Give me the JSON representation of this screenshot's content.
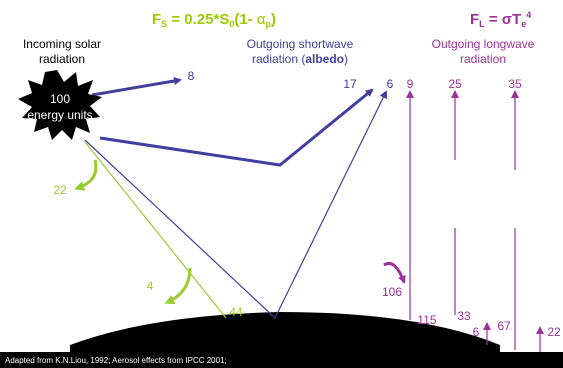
{
  "shortwave_formula": {
    "f": "F",
    "f_sub": "S",
    "mid": " = 0.25*S",
    "s_sub": "0",
    "open": "(1- ",
    "alpha": "α",
    "alpha_sub": "p",
    "close": ")"
  },
  "longwave_formula": {
    "f": "F",
    "f_sub": "L",
    "mid": " = σT",
    "e_sub": "e",
    "sup": "4"
  },
  "incoming_label": [
    "Incoming solar",
    "radiation"
  ],
  "shortwave_label": {
    "line1": "Outgoing shortwave",
    "line2_start": "radiation (",
    "bold": "albedo",
    "line2_end": ")"
  },
  "longwave_label": [
    "Outgoing longwave",
    "radiation"
  ],
  "sun_label": [
    "100",
    "energy units"
  ],
  "numbers": [
    8,
    17,
    6,
    9,
    25,
    35,
    22,
    4,
    44,
    106,
    115,
    33,
    6,
    67,
    22
  ],
  "footer": "Adapted from K.N.Liou, 1992; Aerosol effects from IPCC 2001;"
}
